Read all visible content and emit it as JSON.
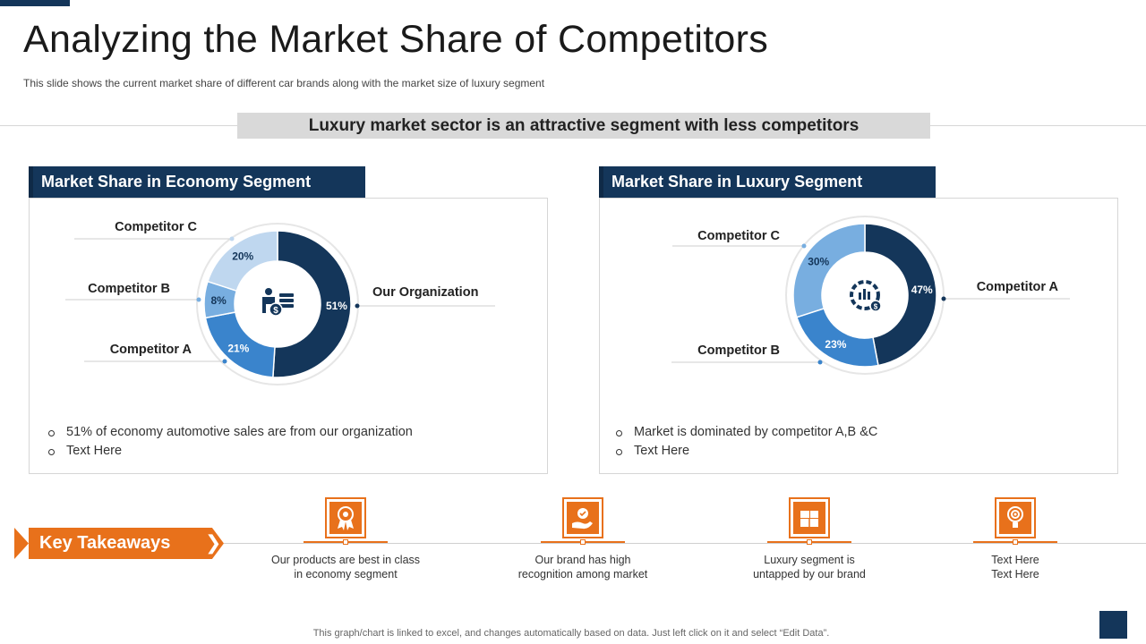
{
  "slide": {
    "title": "Analyzing the Market Share of Competitors",
    "subtitle": "This slide shows the current market share of different  car brands along with the market size of luxury segment",
    "banner": "Luxury market sector is an attractive segment with less competitors",
    "footnote": "This graph/chart is linked to excel,  and changes automatically based on data. Just left click on it and select “Edit Data”."
  },
  "economy": {
    "heading": "Market Share in Economy Segment",
    "bullets": [
      "51% of economy automotive sales are from our organization",
      "Text Here"
    ],
    "center_icon": "businessman-money-icon"
  },
  "luxury": {
    "heading": "Market Share in Luxury Segment",
    "bullets": [
      "Market is dominated by competitor A,B &C",
      "Text Here"
    ],
    "center_icon": "analytics-gear-icon"
  },
  "chart_data": [
    {
      "type": "pie",
      "title": "Market Share in Economy Segment",
      "categories": [
        "Our Organization",
        "Competitor A",
        "Competitor B",
        "Competitor C"
      ],
      "values": [
        51,
        21,
        8,
        20
      ],
      "labels": [
        "51%",
        "21%",
        "8%",
        "20%"
      ],
      "colors": [
        "#14365a",
        "#3a84cc",
        "#78aee0",
        "#bfd7ef"
      ],
      "donut": true
    },
    {
      "type": "pie",
      "title": "Market Share in Luxury Segment",
      "categories": [
        "Competitor A",
        "Competitor B",
        "Competitor C"
      ],
      "values": [
        47,
        23,
        30
      ],
      "labels": [
        "47%",
        "23%",
        "30%"
      ],
      "colors": [
        "#14365a",
        "#3a84cc",
        "#78aee0"
      ],
      "donut": true
    }
  ],
  "takeaways": {
    "label": "Key Takeaways",
    "items": [
      {
        "icon": "award-ribbon-icon",
        "text_1": "Our products are best in class",
        "text_2": "in economy segment"
      },
      {
        "icon": "hand-badge-icon",
        "text_1": "Our brand has high",
        "text_2": "recognition among market"
      },
      {
        "icon": "gift-boxes-icon",
        "text_1": "Luxury segment is",
        "text_2": "untapped by our brand"
      },
      {
        "icon": "target-lightbulb-icon",
        "text_1": "Text Here",
        "text_2": "Text Here"
      }
    ]
  },
  "colors": {
    "navy": "#14365a",
    "orange": "#e8711b",
    "banner_gray": "#d9d9d9"
  }
}
